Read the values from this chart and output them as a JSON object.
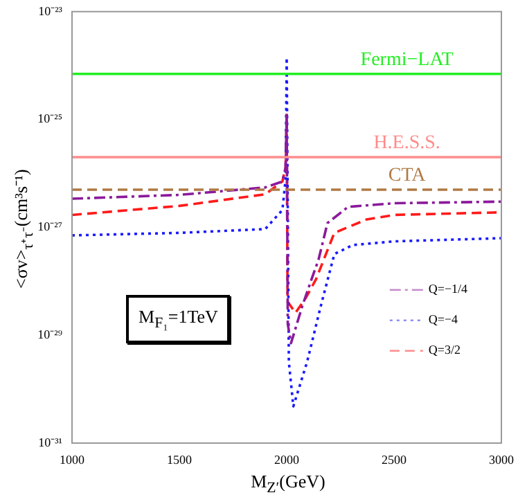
{
  "chart_data": {
    "type": "line",
    "xlabel": "M$_{Z′}$(GeV)",
    "ylabel": "<σv>$_{τ⁺τ⁻}$(cm³s⁻¹)",
    "xlim": [
      1000,
      3000
    ],
    "xticks": [
      1000,
      1500,
      2000,
      2500,
      3000
    ],
    "ylim": [
      1e-31,
      1e-23
    ],
    "yticks": [
      {
        "value": 1e-31,
        "label": "10⁻³¹"
      },
      {
        "value": 1e-29,
        "label": "10⁻²⁹"
      },
      {
        "value": 1e-27,
        "label": "10⁻²⁷"
      },
      {
        "value": 1e-25,
        "label": "10⁻²⁵"
      },
      {
        "value": 1e-23,
        "label": "10⁻²³"
      }
    ],
    "log": "y",
    "grid": false,
    "legend": "right",
    "marker": "none",
    "series": [
      {
        "name": "Q=−1/4",
        "color": "#8b1a9b",
        "line_style": "dashdot",
        "x": [
          1000,
          1500,
          1900,
          1980,
          1995,
          2000,
          2005,
          2020,
          2073,
          2116,
          2148,
          2190,
          2286,
          2500,
          3000
        ],
        "values": [
          3.4e-27,
          4e-27,
          5.5e-27,
          7.1e-27,
          1.3e-26,
          1.3e-25,
          1.6e-29,
          7.1e-30,
          3.5e-29,
          1.1e-28,
          2.5e-28,
          1.2e-27,
          2.4e-27,
          2.8e-27,
          3e-27
        ]
      },
      {
        "name": "Q=−4",
        "color": "#1a1aff",
        "line_style": "dotted",
        "x": [
          1000,
          1500,
          1900,
          1980,
          1995,
          2000,
          2010,
          2031,
          2095,
          2159,
          2222,
          2308,
          2500,
          3000
        ],
        "values": [
          7.1e-28,
          7.9e-28,
          9.3e-28,
          2.1e-27,
          7.9e-27,
          1.4e-24,
          3.2e-30,
          4.8e-31,
          3.2e-30,
          3.5e-29,
          3.2e-28,
          4.7e-28,
          5.5e-28,
          6.3e-28
        ]
      },
      {
        "name": "Q=3/2",
        "color": "#ff1a1a",
        "line_style": "dashed",
        "x": [
          1000,
          1500,
          1900,
          1980,
          1995,
          2000,
          2004,
          2041,
          2090,
          2137,
          2222,
          2372,
          2500,
          3000
        ],
        "values": [
          1.7e-27,
          2.5e-27,
          4.1e-27,
          7.1e-27,
          1.3e-26,
          1.3e-25,
          4.2e-29,
          2.6e-29,
          5e-29,
          1.1e-28,
          7.9e-28,
          1.4e-27,
          1.7e-27,
          1.9e-27
        ]
      }
    ],
    "ref_lines": [
      {
        "axis": "y",
        "value": 7e-25,
        "label": "Fermi−LAT",
        "color": "#22ee22",
        "line_style": "solid"
      },
      {
        "axis": "y",
        "value": 2e-26,
        "label": "H.E.S.S.",
        "color": "#ff8c8c",
        "line_style": "solid"
      },
      {
        "axis": "y",
        "value": 5e-27,
        "label": "CTA",
        "color": "#b07a45",
        "line_style": "dashed"
      }
    ],
    "annotations": [
      "M$_{F₁}$=1TeV"
    ]
  }
}
